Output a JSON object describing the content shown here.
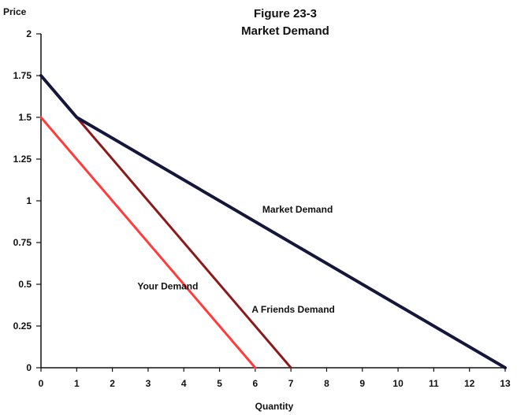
{
  "chart_data": {
    "type": "line",
    "title": "Figure 23-3",
    "subtitle": "Market Demand",
    "xlabel": "Quantity",
    "ylabel": "Price",
    "xlim": [
      0,
      13
    ],
    "ylim": [
      0,
      2
    ],
    "x_ticks": [
      0,
      1,
      2,
      3,
      4,
      5,
      6,
      7,
      8,
      9,
      10,
      11,
      12,
      13
    ],
    "y_ticks": [
      0,
      0.25,
      0.5,
      0.75,
      1,
      1.25,
      1.5,
      1.75,
      2
    ],
    "y_tick_labels": [
      "0",
      "0.25",
      "0.5",
      "0.75",
      "1",
      "1.25",
      "1.5",
      "1.75",
      "2"
    ],
    "grid": false,
    "legend": "none (series labeled directly on plot)",
    "series": [
      {
        "name": "Your Demand",
        "color": "#ff3b3b",
        "points": [
          [
            0,
            1.5
          ],
          [
            6,
            0
          ]
        ]
      },
      {
        "name": "A Friends Demand",
        "color": "#8b1a1a",
        "points": [
          [
            1,
            1.5
          ],
          [
            7,
            0
          ]
        ]
      },
      {
        "name": "Market Demand",
        "color": "#15173a",
        "points": [
          [
            0,
            1.75
          ],
          [
            1,
            1.5
          ],
          [
            13,
            0
          ]
        ]
      }
    ]
  }
}
